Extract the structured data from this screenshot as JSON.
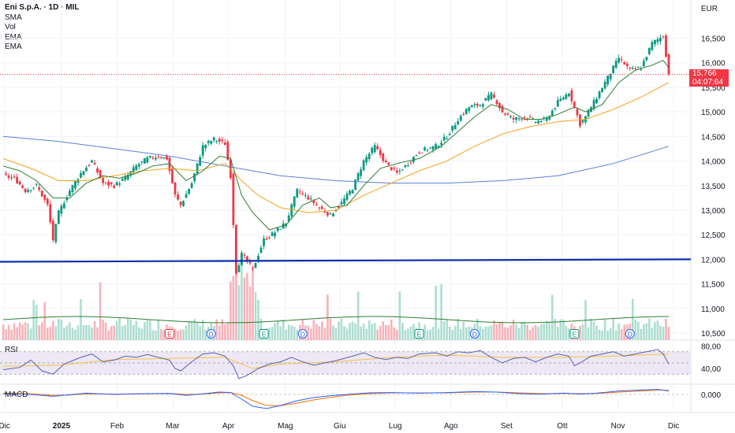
{
  "header": {
    "title": "Eni S.p.A. · 1D · MIL",
    "indicators": [
      "SMA",
      "Vol",
      "EMA",
      "EMA"
    ]
  },
  "currency": "EUR",
  "last_price": {
    "value": "15,766",
    "countdown": "04:07:64"
  },
  "panels": {
    "rsi_label": "RSI",
    "macd_label": "MACD"
  },
  "colors": {
    "up": "#089981",
    "down": "#f23645",
    "ema_fast": "#2e7d32",
    "ema_slow": "#f7a21b",
    "sma": "#5b7fd6",
    "trendline": "#0d2fa8",
    "rsi": "#5b5fb0",
    "rsi_ma": "#f5c542",
    "macd": "#2962ff",
    "signal": "#ff6d00",
    "rsi_band": "#ede7f6"
  },
  "chart_data": [
    {
      "type": "candlestick",
      "title": "Eni S.p.A. · 1D · MIL",
      "price_axis_ticks": [
        16500,
        16000,
        15500,
        15000,
        14500,
        14000,
        13500,
        13000,
        12500,
        12000,
        11500,
        11000,
        10500
      ],
      "price_axis_labels": [
        "16,500",
        "16,000",
        "15,500",
        "15,000",
        "14,500",
        "14,000",
        "13,500",
        "13,000",
        "12,500",
        "12,000",
        "11,500",
        "11,000",
        "10,500"
      ],
      "ylim": [
        10350,
        16900
      ],
      "time_labels": [
        "Dic",
        "2025",
        "Feb",
        "Mar",
        "Apr",
        "Mag",
        "Giu",
        "Lug",
        "Ago",
        "Set",
        "Ott",
        "Nov",
        "Dic"
      ],
      "time_label_positions": [
        0.5,
        22,
        43,
        64,
        85,
        106.5,
        127,
        148,
        169,
        190,
        211,
        232,
        253
      ],
      "candles_count": 241,
      "price_path": [
        [
          0,
          13700
        ],
        [
          4,
          13650
        ],
        [
          8,
          13400
        ],
        [
          12,
          13500
        ],
        [
          16,
          13100
        ],
        [
          18,
          12400
        ],
        [
          20,
          12950
        ],
        [
          24,
          13400
        ],
        [
          28,
          13750
        ],
        [
          32,
          14000
        ],
        [
          36,
          13550
        ],
        [
          40,
          13500
        ],
        [
          44,
          13650
        ],
        [
          48,
          13900
        ],
        [
          52,
          14050
        ],
        [
          56,
          14100
        ],
        [
          59,
          14050
        ],
        [
          62,
          13300
        ],
        [
          64,
          13100
        ],
        [
          68,
          13550
        ],
        [
          72,
          14300
        ],
        [
          76,
          14450
        ],
        [
          80,
          14350
        ],
        [
          82,
          13700
        ],
        [
          84,
          11750
        ],
        [
          86,
          12100
        ],
        [
          90,
          11800
        ],
        [
          94,
          12400
        ],
        [
          98,
          12550
        ],
        [
          102,
          12750
        ],
        [
          106,
          13400
        ],
        [
          110,
          13250
        ],
        [
          114,
          13050
        ],
        [
          118,
          12900
        ],
        [
          122,
          13150
        ],
        [
          126,
          13450
        ],
        [
          130,
          14000
        ],
        [
          134,
          14300
        ],
        [
          138,
          13950
        ],
        [
          142,
          13750
        ],
        [
          146,
          13950
        ],
        [
          150,
          14200
        ],
        [
          156,
          14300
        ],
        [
          160,
          14500
        ],
        [
          164,
          14850
        ],
        [
          168,
          15100
        ],
        [
          172,
          15150
        ],
        [
          176,
          15350
        ],
        [
          178,
          15200
        ],
        [
          180,
          15000
        ],
        [
          184,
          14850
        ],
        [
          188,
          14900
        ],
        [
          192,
          14800
        ],
        [
          196,
          14850
        ],
        [
          200,
          15200
        ],
        [
          204,
          15400
        ],
        [
          206,
          15100
        ],
        [
          208,
          14750
        ],
        [
          210,
          14900
        ],
        [
          214,
          15300
        ],
        [
          218,
          15700
        ],
        [
          222,
          16100
        ],
        [
          226,
          15850
        ],
        [
          230,
          15900
        ],
        [
          234,
          16400
        ],
        [
          238,
          16550
        ],
        [
          240,
          15766
        ]
      ],
      "ema_fast_path": [
        [
          0,
          13900
        ],
        [
          6,
          13800
        ],
        [
          12,
          13600
        ],
        [
          18,
          13250
        ],
        [
          24,
          13250
        ],
        [
          30,
          13550
        ],
        [
          36,
          13700
        ],
        [
          42,
          13650
        ],
        [
          48,
          13750
        ],
        [
          54,
          13900
        ],
        [
          60,
          13950
        ],
        [
          66,
          13600
        ],
        [
          72,
          13800
        ],
        [
          78,
          14100
        ],
        [
          82,
          14050
        ],
        [
          86,
          13300
        ],
        [
          90,
          12950
        ],
        [
          96,
          12600
        ],
        [
          102,
          12700
        ],
        [
          108,
          13100
        ],
        [
          114,
          13250
        ],
        [
          118,
          13050
        ],
        [
          124,
          13100
        ],
        [
          130,
          13500
        ],
        [
          136,
          13850
        ],
        [
          142,
          13950
        ],
        [
          150,
          14050
        ],
        [
          158,
          14300
        ],
        [
          164,
          14600
        ],
        [
          170,
          14900
        ],
        [
          176,
          15150
        ],
        [
          182,
          15050
        ],
        [
          188,
          14850
        ],
        [
          194,
          14850
        ],
        [
          200,
          14950
        ],
        [
          206,
          15100
        ],
        [
          210,
          15000
        ],
        [
          216,
          15150
        ],
        [
          222,
          15600
        ],
        [
          228,
          15850
        ],
        [
          234,
          15950
        ],
        [
          238,
          16050
        ],
        [
          240,
          15900
        ]
      ],
      "ema_slow_path": [
        [
          0,
          14050
        ],
        [
          10,
          13850
        ],
        [
          20,
          13600
        ],
        [
          30,
          13600
        ],
        [
          40,
          13700
        ],
        [
          50,
          13800
        ],
        [
          60,
          13850
        ],
        [
          70,
          13800
        ],
        [
          80,
          13950
        ],
        [
          86,
          13600
        ],
        [
          92,
          13300
        ],
        [
          100,
          13050
        ],
        [
          110,
          12950
        ],
        [
          120,
          13000
        ],
        [
          130,
          13300
        ],
        [
          140,
          13550
        ],
        [
          150,
          13800
        ],
        [
          160,
          14000
        ],
        [
          170,
          14300
        ],
        [
          180,
          14550
        ],
        [
          190,
          14700
        ],
        [
          200,
          14800
        ],
        [
          210,
          14850
        ],
        [
          220,
          15050
        ],
        [
          230,
          15300
        ],
        [
          240,
          15600
        ]
      ],
      "sma_path": [
        [
          0,
          14500
        ],
        [
          20,
          14400
        ],
        [
          40,
          14250
        ],
        [
          60,
          14100
        ],
        [
          80,
          13900
        ],
        [
          100,
          13700
        ],
        [
          120,
          13600
        ],
        [
          140,
          13550
        ],
        [
          160,
          13550
        ],
        [
          180,
          13600
        ],
        [
          200,
          13700
        ],
        [
          220,
          13950
        ],
        [
          240,
          14300
        ]
      ],
      "trendline": [
        [
          0,
          11950
        ],
        [
          253,
          12000
        ]
      ],
      "last_price_line": 15766
    },
    {
      "type": "bar",
      "title": "Vol",
      "event_markers": [
        {
          "label": "E",
          "index": 60
        },
        {
          "label": "D",
          "index": 75
        },
        {
          "label": "E",
          "index": 94
        },
        {
          "label": "D",
          "index": 108
        },
        {
          "label": "E",
          "index": 150
        },
        {
          "label": "D",
          "index": 170
        },
        {
          "label": "E",
          "index": 206
        },
        {
          "label": "D",
          "index": 226
        }
      ]
    },
    {
      "type": "line",
      "title": "RSI",
      "axis_labels": [
        "80,00",
        "40,00"
      ],
      "levels": [
        70,
        50,
        30
      ],
      "ylim": [
        15,
        85
      ],
      "rsi_path": [
        [
          0,
          38
        ],
        [
          6,
          42
        ],
        [
          10,
          55
        ],
        [
          14,
          36
        ],
        [
          18,
          30
        ],
        [
          22,
          48
        ],
        [
          28,
          60
        ],
        [
          32,
          66
        ],
        [
          36,
          52
        ],
        [
          40,
          55
        ],
        [
          44,
          62
        ],
        [
          48,
          60
        ],
        [
          52,
          65
        ],
        [
          56,
          60
        ],
        [
          60,
          55
        ],
        [
          62,
          40
        ],
        [
          64,
          36
        ],
        [
          68,
          52
        ],
        [
          72,
          66
        ],
        [
          76,
          68
        ],
        [
          80,
          62
        ],
        [
          83,
          45
        ],
        [
          85,
          22
        ],
        [
          88,
          28
        ],
        [
          92,
          40
        ],
        [
          96,
          48
        ],
        [
          100,
          52
        ],
        [
          104,
          60
        ],
        [
          108,
          52
        ],
        [
          112,
          46
        ],
        [
          116,
          50
        ],
        [
          120,
          54
        ],
        [
          126,
          62
        ],
        [
          130,
          68
        ],
        [
          134,
          60
        ],
        [
          138,
          56
        ],
        [
          142,
          60
        ],
        [
          146,
          58
        ],
        [
          150,
          66
        ],
        [
          156,
          68
        ],
        [
          160,
          62
        ],
        [
          164,
          70
        ],
        [
          168,
          68
        ],
        [
          172,
          72
        ],
        [
          176,
          60
        ],
        [
          180,
          50
        ],
        [
          184,
          58
        ],
        [
          188,
          60
        ],
        [
          192,
          52
        ],
        [
          196,
          60
        ],
        [
          200,
          66
        ],
        [
          204,
          62
        ],
        [
          206,
          45
        ],
        [
          208,
          50
        ],
        [
          212,
          62
        ],
        [
          216,
          66
        ],
        [
          220,
          70
        ],
        [
          224,
          62
        ],
        [
          228,
          66
        ],
        [
          232,
          70
        ],
        [
          236,
          74
        ],
        [
          238,
          66
        ],
        [
          240,
          48
        ]
      ],
      "rsi_ma_path": [
        [
          0,
          44
        ],
        [
          20,
          46
        ],
        [
          40,
          56
        ],
        [
          60,
          58
        ],
        [
          80,
          60
        ],
        [
          90,
          40
        ],
        [
          100,
          48
        ],
        [
          120,
          52
        ],
        [
          140,
          60
        ],
        [
          160,
          64
        ],
        [
          180,
          60
        ],
        [
          200,
          60
        ],
        [
          220,
          62
        ],
        [
          240,
          66
        ]
      ]
    },
    {
      "type": "line",
      "title": "MACD",
      "axis_labels": [
        "0,000"
      ],
      "ylim": [
        -1.05,
        0.45
      ],
      "macd_path": [
        [
          0,
          0.05
        ],
        [
          10,
          0.0
        ],
        [
          18,
          -0.12
        ],
        [
          24,
          -0.02
        ],
        [
          30,
          0.08
        ],
        [
          40,
          0.0
        ],
        [
          50,
          0.05
        ],
        [
          60,
          0.06
        ],
        [
          66,
          -0.06
        ],
        [
          72,
          0.04
        ],
        [
          78,
          0.15
        ],
        [
          82,
          0.12
        ],
        [
          86,
          -0.3
        ],
        [
          90,
          -0.75
        ],
        [
          95,
          -0.9
        ],
        [
          100,
          -0.7
        ],
        [
          106,
          -0.4
        ],
        [
          112,
          -0.2
        ],
        [
          118,
          -0.08
        ],
        [
          124,
          0.0
        ],
        [
          132,
          0.1
        ],
        [
          140,
          0.12
        ],
        [
          150,
          0.08
        ],
        [
          160,
          0.12
        ],
        [
          170,
          0.18
        ],
        [
          178,
          0.15
        ],
        [
          186,
          0.05
        ],
        [
          194,
          0.02
        ],
        [
          202,
          0.08
        ],
        [
          208,
          0.02
        ],
        [
          214,
          0.08
        ],
        [
          222,
          0.22
        ],
        [
          230,
          0.28
        ],
        [
          236,
          0.32
        ],
        [
          240,
          0.22
        ]
      ],
      "signal_path": [
        [
          0,
          0.08
        ],
        [
          10,
          0.04
        ],
        [
          18,
          -0.06
        ],
        [
          24,
          -0.04
        ],
        [
          30,
          0.04
        ],
        [
          40,
          0.02
        ],
        [
          50,
          0.04
        ],
        [
          60,
          0.06
        ],
        [
          66,
          0.0
        ],
        [
          72,
          0.02
        ],
        [
          78,
          0.1
        ],
        [
          82,
          0.12
        ],
        [
          86,
          -0.05
        ],
        [
          90,
          -0.4
        ],
        [
          95,
          -0.7
        ],
        [
          100,
          -0.72
        ],
        [
          106,
          -0.55
        ],
        [
          112,
          -0.35
        ],
        [
          118,
          -0.18
        ],
        [
          124,
          -0.05
        ],
        [
          132,
          0.05
        ],
        [
          140,
          0.1
        ],
        [
          150,
          0.1
        ],
        [
          160,
          0.1
        ],
        [
          170,
          0.15
        ],
        [
          178,
          0.15
        ],
        [
          186,
          0.1
        ],
        [
          194,
          0.05
        ],
        [
          202,
          0.06
        ],
        [
          208,
          0.05
        ],
        [
          214,
          0.06
        ],
        [
          222,
          0.15
        ],
        [
          230,
          0.22
        ],
        [
          236,
          0.28
        ],
        [
          240,
          0.26
        ]
      ]
    }
  ]
}
